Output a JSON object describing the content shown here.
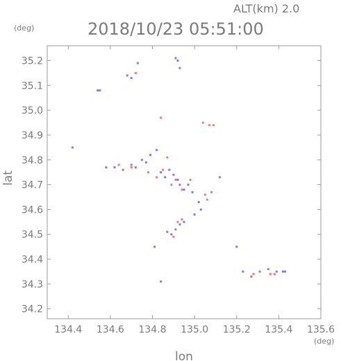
{
  "header": {
    "altitude_label": "ALT(km) 2.0",
    "timestamp": "2018/10/23 05:51:00"
  },
  "chart_data": {
    "type": "scatter",
    "title": "2018/10/23 05:51:00",
    "xlabel": "lon",
    "ylabel": "lat",
    "xunit": "(deg)",
    "yunit": "(deg)",
    "xlim": [
      134.3,
      135.6
    ],
    "ylim": [
      34.16,
      35.26
    ],
    "xticks": [
      "134.4",
      "134.6",
      "134.8",
      "135.0",
      "135.2",
      "135.4",
      "135.6"
    ],
    "yticks": [
      "34.2",
      "34.3",
      "34.4",
      "34.5",
      "34.6",
      "34.7",
      "34.8",
      "34.9",
      "35.0",
      "35.1",
      "35.2"
    ],
    "grid": false,
    "colors": {
      "positive": "#f06464",
      "negative": "#6464f0"
    },
    "series": [
      {
        "polarity": "negative",
        "points": [
          [
            134.54,
            35.08
          ],
          [
            134.55,
            35.08
          ],
          [
            134.68,
            35.14
          ],
          [
            134.7,
            35.13
          ],
          [
            134.73,
            35.19
          ],
          [
            134.91,
            35.21
          ],
          [
            134.92,
            35.2
          ],
          [
            134.93,
            35.17
          ],
          [
            134.42,
            34.85
          ],
          [
            134.58,
            34.77
          ],
          [
            134.62,
            34.77
          ],
          [
            134.66,
            34.76
          ],
          [
            134.7,
            34.78
          ],
          [
            134.72,
            34.77
          ],
          [
            134.75,
            34.8
          ],
          [
            134.77,
            34.79
          ],
          [
            134.79,
            34.82
          ],
          [
            134.82,
            34.84
          ],
          [
            134.84,
            34.75
          ],
          [
            134.86,
            34.73
          ],
          [
            134.88,
            34.76
          ],
          [
            134.9,
            34.74
          ],
          [
            134.92,
            34.72
          ],
          [
            134.93,
            34.7
          ],
          [
            134.95,
            34.68
          ],
          [
            134.97,
            34.7
          ],
          [
            134.99,
            34.67
          ],
          [
            135.02,
            34.63
          ],
          [
            135.0,
            34.58
          ],
          [
            135.03,
            34.6
          ],
          [
            134.87,
            34.51
          ],
          [
            134.89,
            34.5
          ],
          [
            134.91,
            34.52
          ],
          [
            134.93,
            34.54
          ],
          [
            134.95,
            34.55
          ],
          [
            134.81,
            34.45
          ],
          [
            134.84,
            34.31
          ],
          [
            135.23,
            34.35
          ],
          [
            135.27,
            34.33
          ],
          [
            135.31,
            34.35
          ],
          [
            135.35,
            34.36
          ],
          [
            135.39,
            34.35
          ],
          [
            135.43,
            34.35
          ],
          [
            135.42,
            34.35
          ],
          [
            135.2,
            34.45
          ],
          [
            135.12,
            34.73
          ]
        ]
      },
      {
        "polarity": "positive",
        "points": [
          [
            134.72,
            35.15
          ],
          [
            134.84,
            34.97
          ],
          [
            135.04,
            34.95
          ],
          [
            135.07,
            34.94
          ],
          [
            135.09,
            34.94
          ],
          [
            134.87,
            34.81
          ],
          [
            134.64,
            34.78
          ],
          [
            134.7,
            34.77
          ],
          [
            134.78,
            34.75
          ],
          [
            134.82,
            34.73
          ],
          [
            134.85,
            34.76
          ],
          [
            134.89,
            34.7
          ],
          [
            134.91,
            34.72
          ],
          [
            134.94,
            34.68
          ],
          [
            134.98,
            34.72
          ],
          [
            135.05,
            34.66
          ],
          [
            135.08,
            34.67
          ],
          [
            135.06,
            34.64
          ],
          [
            134.92,
            34.55
          ],
          [
            134.94,
            34.56
          ],
          [
            134.9,
            34.49
          ],
          [
            135.28,
            34.34
          ],
          [
            135.36,
            34.34
          ],
          [
            135.38,
            34.34
          ]
        ]
      }
    ]
  }
}
